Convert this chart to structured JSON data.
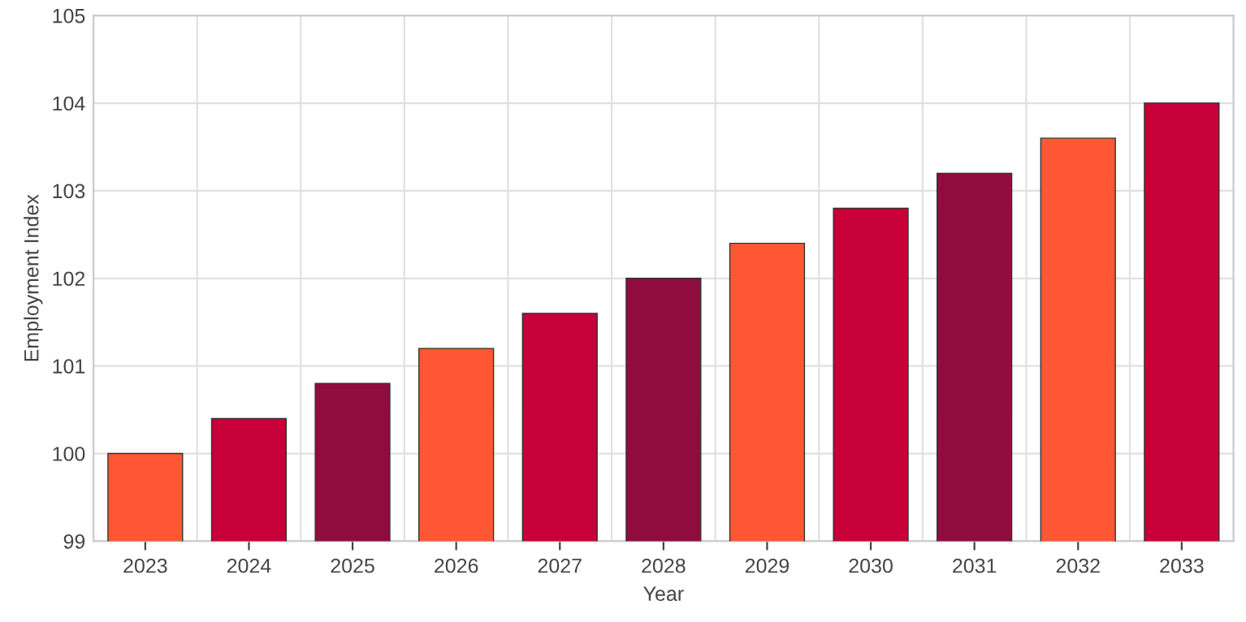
{
  "chart_data": {
    "type": "bar",
    "xlabel": "Year",
    "ylabel": "Employment Index",
    "categories": [
      "2023",
      "2024",
      "2025",
      "2026",
      "2027",
      "2028",
      "2029",
      "2030",
      "2031",
      "2032",
      "2033"
    ],
    "values": [
      100,
      100.4,
      100.8,
      101.2,
      101.6,
      102,
      102.4,
      102.8,
      103.2,
      103.6,
      104
    ],
    "colors": [
      "#ff5733",
      "#c70039",
      "#900c3f",
      "#ff5733",
      "#c70039",
      "#900c3f",
      "#ff5733",
      "#c70039",
      "#900c3f",
      "#ff5733",
      "#c70039"
    ],
    "ylim": [
      99,
      105
    ],
    "yticks": [
      99,
      100,
      101,
      102,
      103,
      104,
      105
    ],
    "grid": true
  }
}
